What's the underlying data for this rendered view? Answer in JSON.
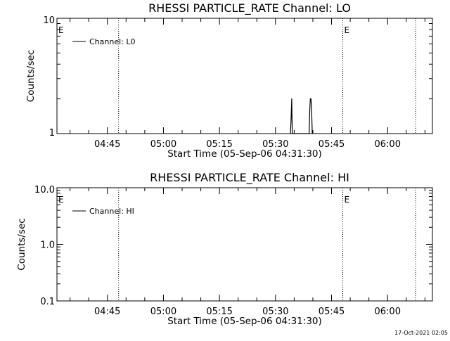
{
  "footer": {
    "timestamp": "17-Oct-2021 02:05"
  },
  "chart_data": [
    {
      "type": "line",
      "title": "RHESSI PARTICLE_RATE Channel: LO",
      "xlabel": "Start Time (05-Sep-06 04:31:30)",
      "ylabel": "Counts/sec",
      "y_scale": "log",
      "ylim": [
        1,
        10
      ],
      "xlim": [
        "04:31:30",
        "06:12:00"
      ],
      "y_tick_labels": [
        "1",
        "10"
      ],
      "x_tick_labels": [
        "04:45",
        "05:00",
        "05:15",
        "05:30",
        "05:45",
        "06:00"
      ],
      "legend": {
        "placement": "top-left",
        "entries": [
          "Channel: L0"
        ]
      },
      "grid": false,
      "event_markers": [
        {
          "time": "04:48:00",
          "label": "E"
        },
        {
          "time": "05:48:00",
          "label": "E"
        },
        {
          "time": "06:07:30",
          "label": ""
        }
      ],
      "series": [
        {
          "name": "Channel: L0",
          "color": "#000000",
          "x": [
            "05:34:00",
            "05:34:10",
            "05:34:20",
            "05:34:30",
            "05:39:00",
            "05:39:10",
            "05:39:20",
            "05:39:30",
            "05:39:40",
            "05:39:50"
          ],
          "values": [
            1,
            1.35,
            2,
            1,
            1,
            1.6,
            2,
            2,
            1.6,
            1
          ]
        }
      ]
    },
    {
      "type": "line",
      "title": "RHESSI PARTICLE_RATE Channel: HI",
      "xlabel": "Start Time (05-Sep-06 04:31:30)",
      "ylabel": "Counts/sec",
      "y_scale": "log",
      "ylim": [
        0.1,
        10
      ],
      "xlim": [
        "04:31:30",
        "06:12:00"
      ],
      "y_tick_labels": [
        "0.1",
        "1.0",
        "10.0"
      ],
      "x_tick_labels": [
        "04:45",
        "05:00",
        "05:15",
        "05:30",
        "05:45",
        "06:00"
      ],
      "legend": {
        "placement": "top-left",
        "entries": [
          "Channel: HI"
        ]
      },
      "grid": false,
      "event_markers": [
        {
          "time": "04:48:00",
          "label": "E"
        },
        {
          "time": "05:48:00",
          "label": "E"
        },
        {
          "time": "06:07:30",
          "label": ""
        }
      ],
      "series": [
        {
          "name": "Channel: HI",
          "color": "#000000",
          "x": [],
          "values": []
        }
      ]
    }
  ]
}
